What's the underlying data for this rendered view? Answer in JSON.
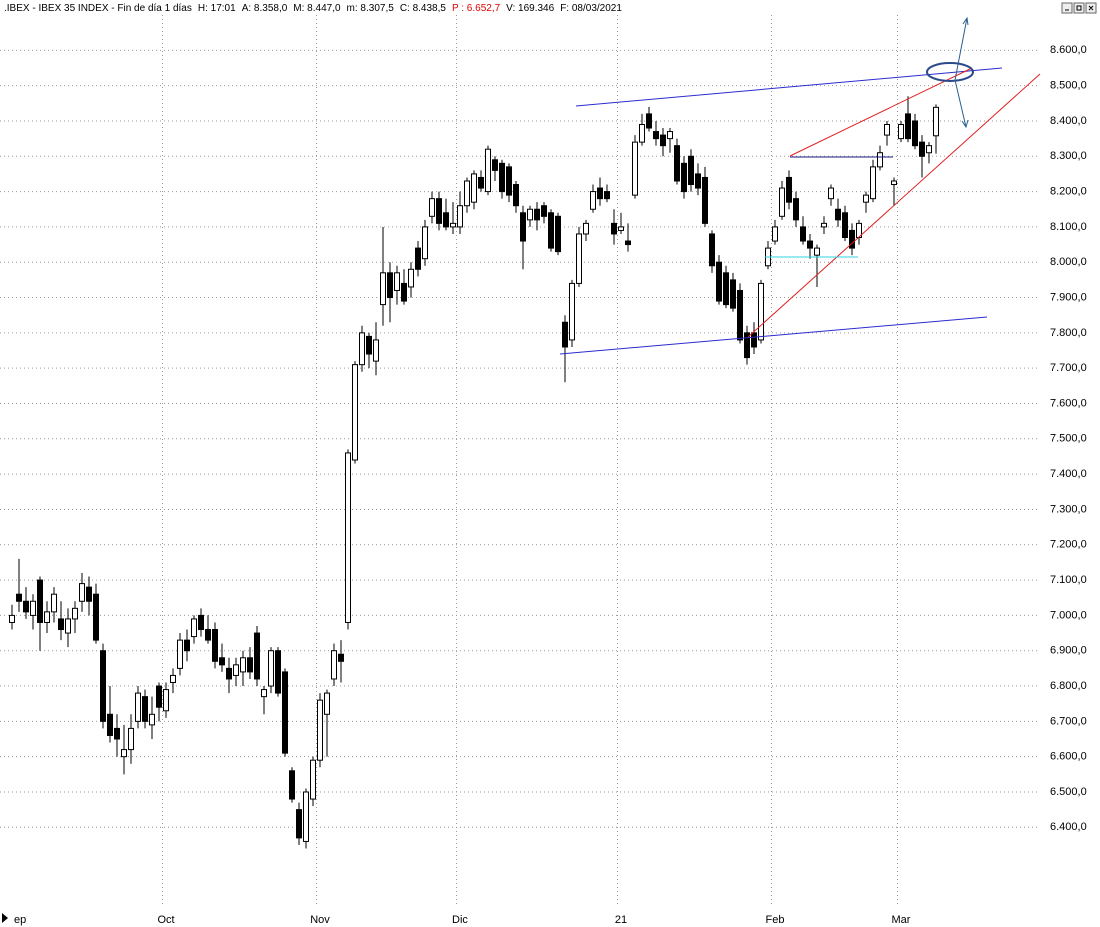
{
  "header": {
    "symbol": ".IBEX - IBEX 35 INDEX - Fin de día 1 días",
    "items": [
      "H: 17:01",
      "A: 8.358,0",
      "M: 8.447,0",
      "m: 8.307,5",
      "C: 8.438,5",
      "P : 6.652,7",
      "V: 169.346",
      "F: 08/03/2021"
    ]
  },
  "chart_data": {
    "type": "candlestick",
    "categories": [
      "ep",
      null,
      null,
      null,
      null,
      null,
      null,
      null,
      null,
      null,
      null,
      null,
      null,
      null,
      null,
      null,
      null,
      null,
      null,
      null,
      null,
      null,
      "Oct",
      null,
      null,
      null,
      null,
      null,
      null,
      null,
      null,
      null,
      null,
      null,
      null,
      null,
      null,
      null,
      null,
      null,
      null,
      null,
      null,
      null,
      "Nov",
      null,
      null,
      null,
      null,
      null,
      null,
      null,
      null,
      null,
      null,
      null,
      null,
      null,
      null,
      null,
      null,
      null,
      null,
      null,
      "Dic",
      null,
      null,
      null,
      null,
      null,
      null,
      null,
      null,
      null,
      null,
      null,
      null,
      null,
      null,
      null,
      null,
      null,
      null,
      null,
      null,
      null,
      null,
      "21",
      null,
      null,
      null,
      null,
      null,
      null,
      null,
      null,
      null,
      null,
      null,
      null,
      null,
      null,
      null,
      null,
      null,
      null,
      null,
      null,
      null,
      "Feb",
      null,
      null,
      null,
      null,
      null,
      null,
      null,
      null,
      null,
      null,
      null,
      null,
      null,
      null,
      null,
      null,
      null,
      "Mar",
      null,
      null,
      null,
      null,
      null
    ],
    "open": [
      6980,
      7060,
      7040,
      7000,
      7100,
      6980,
      7010,
      6990,
      6950,
      6990,
      7040,
      7080,
      7060,
      6900,
      6720,
      6680,
      6600,
      6620,
      6700,
      6770,
      6690,
      6800,
      6730,
      6810,
      6850,
      6930,
      6940,
      7000,
      6960,
      6960,
      6880,
      6850,
      6830,
      6840,
      6880,
      6950,
      6770,
      6800,
      6900,
      6840,
      6560,
      6450,
      6360,
      6480,
      6590,
      6720,
      6820,
      6890,
      6980,
      7440,
      7710,
      7790,
      7720,
      7880,
      7970,
      7920,
      7940,
      7930,
      8040,
      8010,
      8130,
      8180,
      8140,
      8100,
      8100,
      8160,
      8170,
      8240,
      8200,
      8290,
      8280,
      8270,
      8220,
      8140,
      8120,
      8150,
      8160,
      8140,
      8130,
      7830,
      7780,
      7940,
      8080,
      8150,
      8210,
      8200,
      8110,
      8090,
      8060,
      8190,
      8340,
      8420,
      8370,
      8360,
      8350,
      8330,
      8280,
      8300,
      8250,
      8240,
      8080,
      8000,
      7970,
      7950,
      7920,
      7800,
      7800,
      7780,
      7990,
      8060,
      8130,
      8240,
      8180,
      8100,
      8060,
      8020,
      8100,
      8180,
      8150,
      8140,
      8090,
      8070,
      8170,
      8180,
      8270,
      8360,
      8220,
      8350,
      8420,
      8400,
      8340,
      8310,
      8358
    ],
    "high": [
      7030,
      7160,
      7080,
      7060,
      7110,
      7040,
      7080,
      7040,
      7020,
      7040,
      7120,
      7110,
      7090,
      6920,
      6800,
      6720,
      6690,
      6720,
      6800,
      6790,
      6770,
      6810,
      6810,
      6850,
      6950,
      6960,
      7000,
      7020,
      7000,
      6980,
      6920,
      6880,
      6880,
      6900,
      6910,
      6970,
      6800,
      6910,
      6910,
      6850,
      6570,
      6470,
      6510,
      6600,
      6780,
      6790,
      6920,
      6930,
      7470,
      7720,
      7820,
      7800,
      7830,
      8100,
      8000,
      7990,
      7980,
      8000,
      8060,
      8120,
      8200,
      8200,
      8180,
      8170,
      8200,
      8240,
      8260,
      8260,
      8330,
      8300,
      8290,
      8280,
      8230,
      8160,
      8160,
      8170,
      8170,
      8150,
      8140,
      7850,
      7950,
      8100,
      8120,
      8220,
      8240,
      8220,
      8150,
      8140,
      8110,
      8360,
      8420,
      8440,
      8400,
      8380,
      8380,
      8350,
      8300,
      8320,
      8280,
      8270,
      8090,
      8020,
      7990,
      7970,
      7940,
      7820,
      7830,
      7950,
      8060,
      8120,
      8230,
      8260,
      8200,
      8130,
      8080,
      8050,
      8130,
      8220,
      8180,
      8160,
      8110,
      8120,
      8200,
      8290,
      8330,
      8400,
      8240,
      8400,
      8470,
      8420,
      8360,
      8340,
      8447
    ],
    "low": [
      6960,
      7010,
      6990,
      6960,
      6900,
      6950,
      6980,
      6930,
      6910,
      6950,
      7010,
      7000,
      6920,
      6680,
      6640,
      6600,
      6550,
      6580,
      6680,
      6680,
      6650,
      6700,
      6710,
      6780,
      6830,
      6870,
      6920,
      6940,
      6920,
      6850,
      6840,
      6780,
      6800,
      6800,
      6820,
      6800,
      6720,
      6780,
      6770,
      6600,
      6470,
      6350,
      6340,
      6460,
      6570,
      6600,
      6800,
      6810,
      6960,
      7430,
      7690,
      7700,
      7680,
      7820,
      7830,
      7880,
      7880,
      7900,
      7960,
      7990,
      8110,
      8090,
      8090,
      8080,
      8080,
      8140,
      8150,
      8200,
      8190,
      8230,
      8180,
      8170,
      8140,
      7980,
      8100,
      8090,
      8110,
      8030,
      8020,
      7660,
      7760,
      7930,
      8060,
      8140,
      8160,
      8170,
      8050,
      8080,
      8030,
      8180,
      8330,
      8370,
      8330,
      8300,
      8310,
      8220,
      8180,
      8200,
      8190,
      8100,
      7970,
      7880,
      7870,
      7860,
      7770,
      7710,
      7740,
      7770,
      7980,
      8050,
      8120,
      8150,
      8100,
      8050,
      8010,
      7930,
      8080,
      8160,
      8100,
      8060,
      8020,
      8050,
      8140,
      8170,
      8260,
      8330,
      8160,
      8340,
      8340,
      8320,
      8240,
      8280,
      8307.5
    ],
    "close": [
      7000,
      7040,
      7010,
      7040,
      6980,
      7010,
      7060,
      6960,
      6990,
      7020,
      7090,
      7040,
      6930,
      6700,
      6660,
      6650,
      6620,
      6680,
      6780,
      6700,
      6720,
      6740,
      6790,
      6830,
      6930,
      6900,
      6990,
      6960,
      6930,
      6870,
      6860,
      6820,
      6860,
      6880,
      6840,
      6820,
      6790,
      6900,
      6780,
      6610,
      6480,
      6370,
      6500,
      6590,
      6760,
      6780,
      6900,
      6870,
      7460,
      7710,
      7800,
      7740,
      7780,
      7970,
      7900,
      7970,
      7890,
      7980,
      7980,
      8100,
      8180,
      8110,
      8100,
      8110,
      8160,
      8230,
      8250,
      8210,
      8320,
      8260,
      8200,
      8190,
      8160,
      8060,
      8150,
      8120,
      8130,
      8040,
      8030,
      7760,
      7940,
      8080,
      8110,
      8200,
      8180,
      8180,
      8080,
      8100,
      8050,
      8340,
      8390,
      8380,
      8350,
      8330,
      8370,
      8230,
      8200,
      8220,
      8210,
      8110,
      7990,
      7890,
      7880,
      7870,
      7780,
      7730,
      7760,
      7940,
      8040,
      8100,
      8210,
      8170,
      8120,
      8060,
      8040,
      8040,
      8110,
      8210,
      8120,
      8070,
      8040,
      8110,
      8190,
      8270,
      8310,
      8390,
      8230,
      8390,
      8350,
      8330,
      8300,
      8330,
      8438.5
    ],
    "up_color": "#ffffff",
    "down_color": "#000000",
    "ylim": [
      6180,
      8700
    ],
    "yticks": [
      {
        "value": 6400,
        "label": "6.400,0"
      },
      {
        "value": 6500,
        "label": "6.500,0"
      },
      {
        "value": 6600,
        "label": "6.600,0"
      },
      {
        "value": 6700,
        "label": "6.700,0"
      },
      {
        "value": 6800,
        "label": "6.800,0"
      },
      {
        "value": 6900,
        "label": "6.900,0"
      },
      {
        "value": 7000,
        "label": "7.000,0"
      },
      {
        "value": 7100,
        "label": "7.100,0"
      },
      {
        "value": 7200,
        "label": "7.200,0"
      },
      {
        "value": 7300,
        "label": "7.300,0"
      },
      {
        "value": 7400,
        "label": "7.400,0"
      },
      {
        "value": 7500,
        "label": "7.500,0"
      },
      {
        "value": 7600,
        "label": "7.600,0"
      },
      {
        "value": 7700,
        "label": "7.700,0"
      },
      {
        "value": 7800,
        "label": "7.800,0"
      },
      {
        "value": 7900,
        "label": "7.900,0"
      },
      {
        "value": 8000,
        "label": "8.000,0"
      },
      {
        "value": 8100,
        "label": "8.100,0"
      },
      {
        "value": 8200,
        "label": "8.200,0"
      },
      {
        "value": 8300,
        "label": "8.300,0"
      },
      {
        "value": 8400,
        "label": "8.400,0"
      },
      {
        "value": 8500,
        "label": "8.500,0"
      },
      {
        "value": 8600,
        "label": "8.600,0"
      }
    ],
    "grid": true
  }
}
